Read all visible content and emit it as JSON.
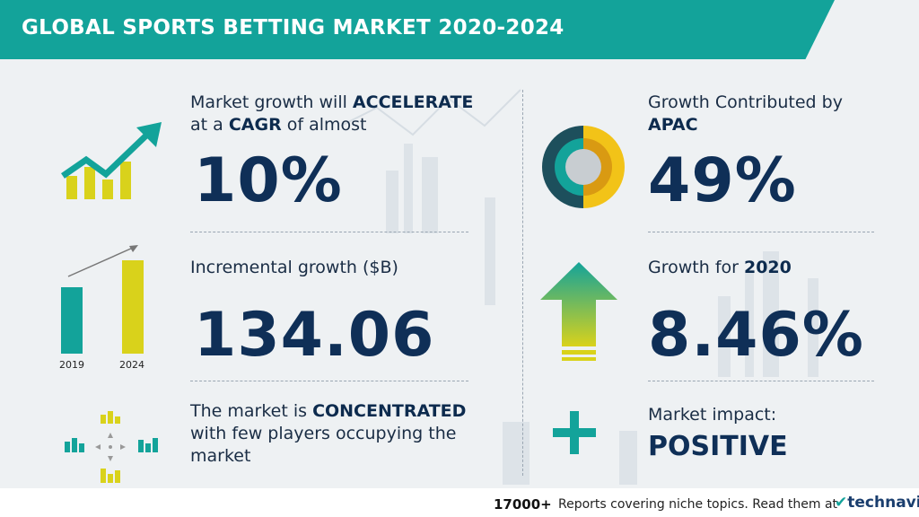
{
  "header": {
    "title": "GLOBAL SPORTS BETTING MARKET 2020-2024"
  },
  "cagr": {
    "line1_pre": "Market growth will ",
    "line1_bold": "ACCELERATE",
    "line2_pre": "at a ",
    "line2_bold": "CAGR",
    "line2_post": " of almost",
    "value": "10%"
  },
  "incremental": {
    "label": "Incremental growth ($B)",
    "value": "134.06",
    "bar_years": [
      "2019",
      "2024"
    ]
  },
  "concentration": {
    "pre": "The market is ",
    "bold": "CONCENTRATED",
    "line2": "with few players occupying the",
    "line3": "market"
  },
  "apac": {
    "line1": "Growth Contributed by",
    "line2_bold": "APAC",
    "value": "49%"
  },
  "growth2020": {
    "label_pre": "Growth for ",
    "label_bold": "2020",
    "value": "8.46%"
  },
  "impact": {
    "label": "Market impact:",
    "value": "POSITIVE"
  },
  "footer": {
    "count": "17000+",
    "text": "Reports covering niche topics. Read them at",
    "logo_text": "technavio"
  },
  "icons": [
    "trend-chart-icon",
    "bar-growth-icon",
    "concentration-icon",
    "donut-icon",
    "up-arrow-icon",
    "plus-icon"
  ],
  "colors": {
    "teal": "#13a39a",
    "yellow": "#d9d21b",
    "navy": "#0f2f57",
    "dark_teal": "#1d4f5c"
  }
}
